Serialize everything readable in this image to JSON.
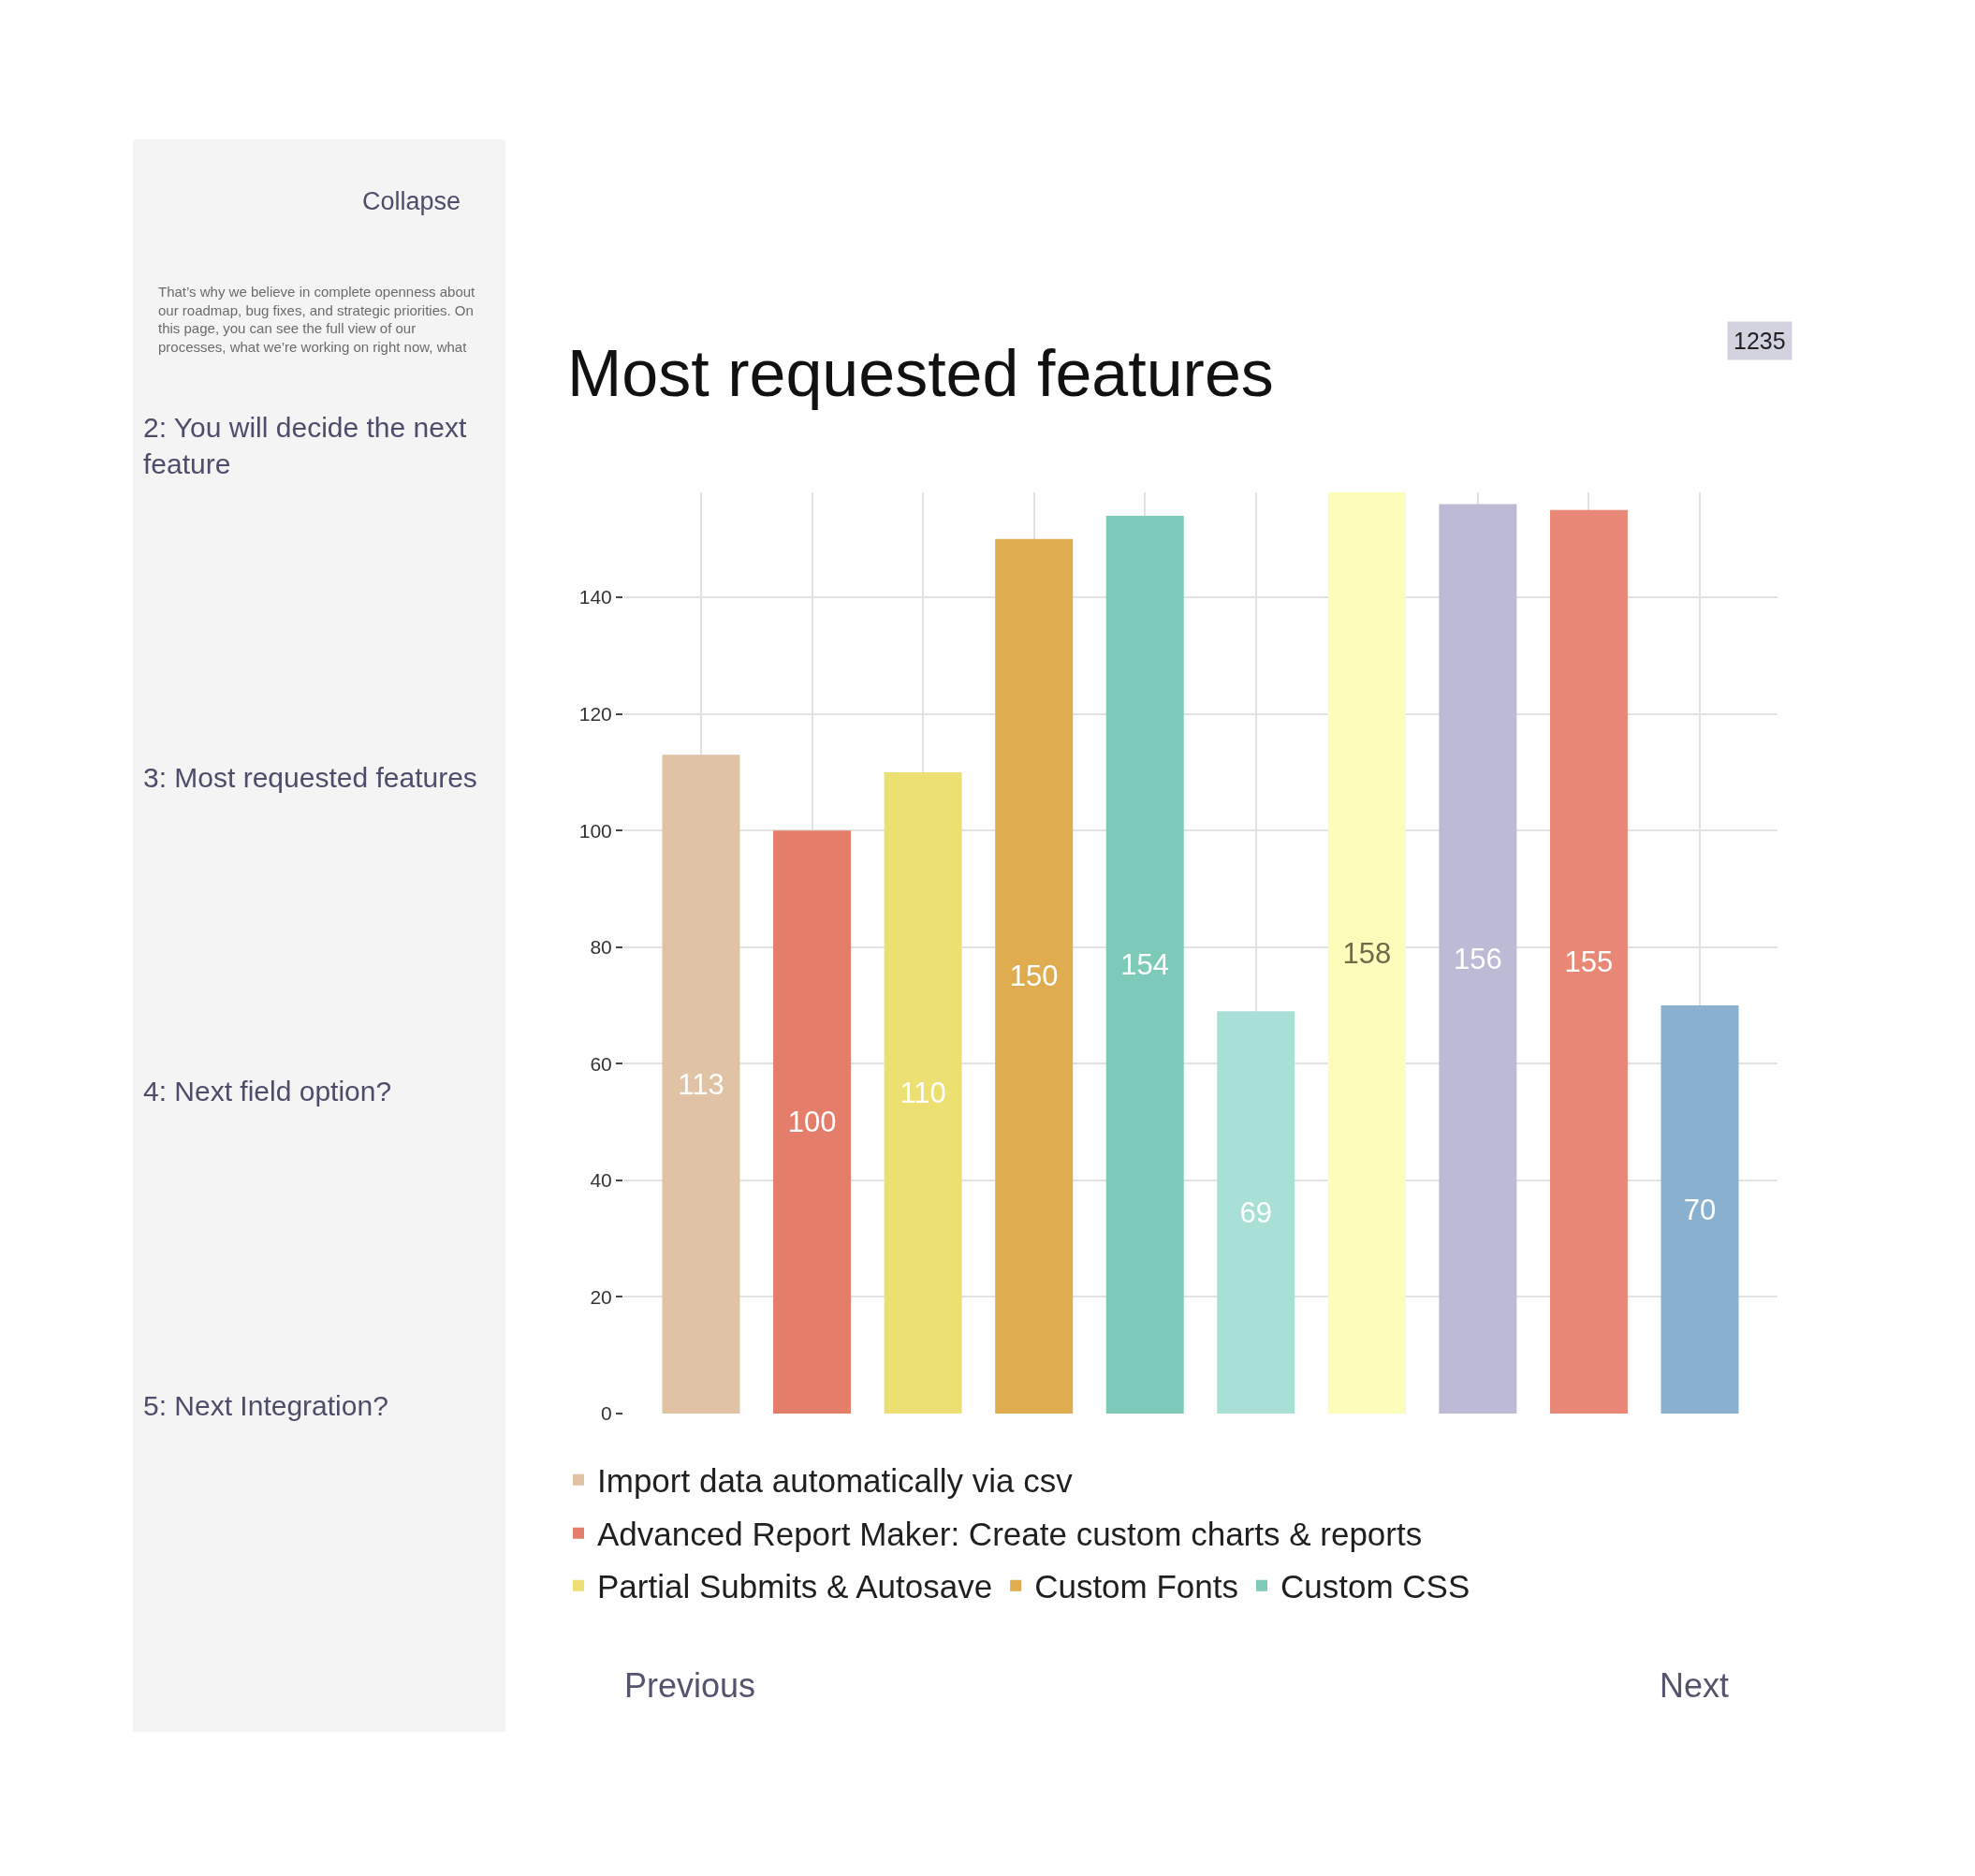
{
  "chart_data": {
    "type": "bar",
    "title": "Most requested features",
    "categories": [
      null,
      null,
      null,
      null,
      null,
      null,
      null,
      null,
      null,
      null
    ],
    "series": [
      {
        "name": "Import data automatically via csv",
        "color": "#e0c2a4",
        "values": [
          113,
          null,
          null,
          null,
          null,
          null,
          null,
          null,
          null,
          null
        ]
      },
      {
        "name": "Advanced Report Maker: Create custom charts & reports",
        "color": "#e47d69",
        "values": [
          null,
          100,
          null,
          null,
          null,
          null,
          null,
          null,
          null,
          null
        ]
      },
      {
        "name": "Partial Submits & Autosave",
        "color": "#ede073",
        "values": [
          null,
          null,
          110,
          null,
          null,
          null,
          null,
          null,
          null,
          null
        ]
      },
      {
        "name": "Custom Fonts",
        "color": "#dfad50",
        "values": [
          null,
          null,
          null,
          150,
          null,
          null,
          null,
          null,
          null,
          null
        ]
      },
      {
        "name": "Custom CSS",
        "color": "#7dcab9",
        "values": [
          null,
          null,
          null,
          null,
          154,
          null,
          null,
          null,
          null,
          null
        ]
      },
      {
        "color": "#a8e0d6",
        "values": [
          null,
          null,
          null,
          null,
          null,
          69,
          null,
          null,
          null,
          null
        ]
      },
      {
        "color": "#fcfcbb",
        "values": [
          null,
          null,
          null,
          null,
          null,
          null,
          158,
          null,
          null,
          null
        ]
      },
      {
        "color": "#bdbad6",
        "values": [
          null,
          null,
          null,
          null,
          null,
          null,
          null,
          156,
          null,
          null
        ]
      },
      {
        "color": "#e98877",
        "values": [
          null,
          null,
          null,
          null,
          null,
          null,
          null,
          null,
          155,
          null
        ]
      },
      {
        "color": "#8ab0cf",
        "values": [
          null,
          null,
          null,
          null,
          null,
          null,
          null,
          null,
          null,
          70
        ]
      }
    ],
    "ylim": [
      0,
      158
    ],
    "yticks": [
      0,
      20,
      40,
      60,
      80,
      100,
      120,
      140
    ],
    "data_labels": true,
    "grid": true,
    "legend": "bottom",
    "tick_labels": "y",
    "annotations": [
      "Collapse",
      "That’s why we believe in complete openness about\nour roadmap, bug fixes, and strategic priorities. On\nthis page, you can see the full view of our\nprocesses, what we’re working on right now, what",
      "2: You will decide the next\nfeature",
      "3: Most requested features",
      "4: Next field option?",
      "5: Next Integration?",
      "1235",
      "Previous",
      "Next"
    ]
  }
}
